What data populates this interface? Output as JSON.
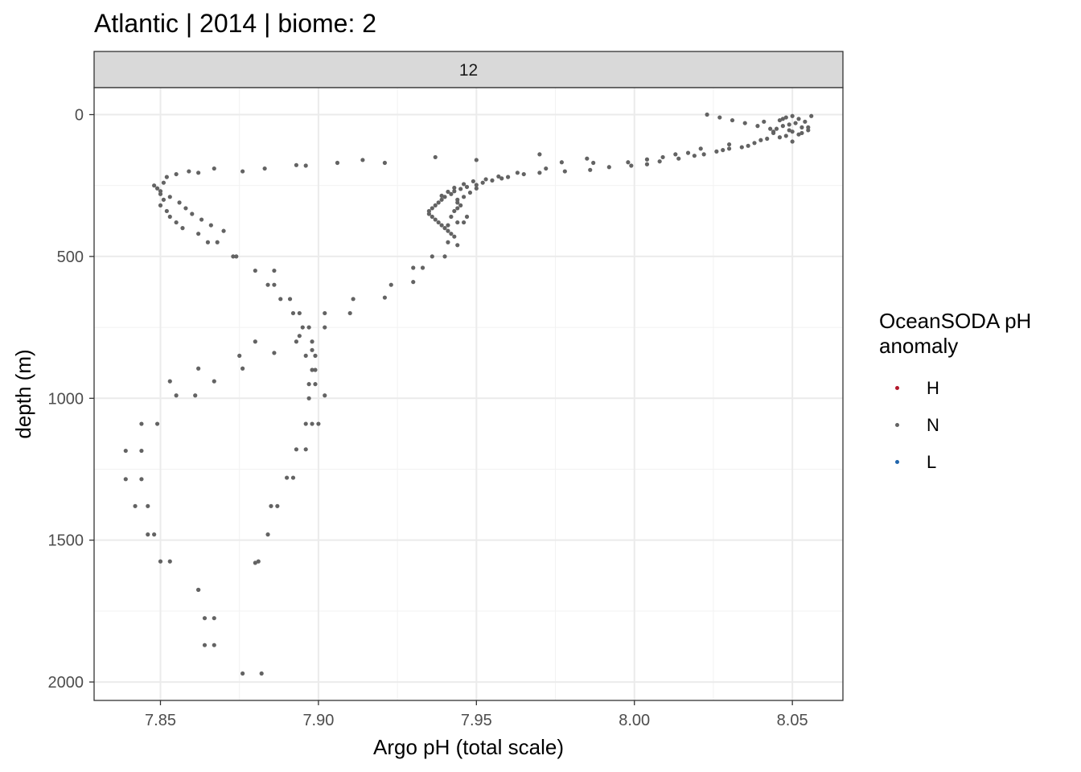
{
  "chart_data": {
    "type": "scatter",
    "title": "Atlantic | 2014 | biome: 2",
    "facet_label": "12",
    "xlabel": "Argo pH (total scale)",
    "ylabel": "depth (m)",
    "xlim": [
      7.829,
      8.066
    ],
    "ylim": [
      2065,
      -95
    ],
    "y_reversed": true,
    "x_ticks": [
      7.85,
      7.9,
      7.95,
      8.0,
      8.05
    ],
    "x_tick_labels": [
      "7.85",
      "7.90",
      "7.95",
      "8.00",
      "8.05"
    ],
    "y_ticks": [
      0,
      500,
      1000,
      1500,
      2000
    ],
    "y_tick_labels": [
      "0",
      "500",
      "1000",
      "1500",
      "2000"
    ],
    "grid": true,
    "legend": {
      "title": "OceanSODA pH anomaly",
      "position": "right",
      "entries": [
        {
          "label": "H",
          "color": "#B2182B"
        },
        {
          "label": "N",
          "color": "#636363"
        },
        {
          "label": "L",
          "color": "#2166AC"
        }
      ]
    },
    "series": [
      {
        "name": "N",
        "color": "#636363",
        "points": [
          [
            8.05,
            5
          ],
          [
            8.048,
            10
          ],
          [
            8.052,
            15
          ],
          [
            8.046,
            20
          ],
          [
            8.054,
            25
          ],
          [
            8.051,
            30
          ],
          [
            8.049,
            35
          ],
          [
            8.047,
            40
          ],
          [
            8.053,
            45
          ],
          [
            8.045,
            50
          ],
          [
            8.055,
            55
          ],
          [
            8.05,
            60
          ],
          [
            8.044,
            65
          ],
          [
            8.052,
            70
          ],
          [
            8.048,
            75
          ],
          [
            8.046,
            80
          ],
          [
            8.042,
            85
          ],
          [
            8.04,
            90
          ],
          [
            8.05,
            95
          ],
          [
            8.038,
            100
          ],
          [
            8.036,
            110
          ],
          [
            8.034,
            115
          ],
          [
            8.03,
            120
          ],
          [
            8.028,
            125
          ],
          [
            8.026,
            130
          ],
          [
            8.023,
            0
          ],
          [
            8.027,
            10
          ],
          [
            8.031,
            20
          ],
          [
            8.035,
            30
          ],
          [
            8.039,
            40
          ],
          [
            8.043,
            50
          ],
          [
            8.056,
            5
          ],
          [
            8.055,
            45
          ],
          [
            8.053,
            65
          ],
          [
            8.041,
            25
          ],
          [
            8.044,
            60
          ],
          [
            8.047,
            15
          ],
          [
            8.049,
            55
          ],
          [
            8.022,
            140
          ],
          [
            8.019,
            145
          ],
          [
            8.014,
            155
          ],
          [
            8.008,
            165
          ],
          [
            8.004,
            175
          ],
          [
            7.999,
            180
          ],
          [
            7.992,
            185
          ],
          [
            7.986,
            195
          ],
          [
            7.978,
            200
          ],
          [
            7.97,
            205
          ],
          [
            7.965,
            210
          ],
          [
            7.96,
            220
          ],
          [
            7.958,
            225
          ],
          [
            7.955,
            232
          ],
          [
            7.952,
            240
          ],
          [
            7.95,
            248
          ],
          [
            7.947,
            255
          ],
          [
            7.945,
            262
          ],
          [
            7.943,
            270
          ],
          [
            7.942,
            280
          ],
          [
            7.94,
            290
          ],
          [
            7.939,
            300
          ],
          [
            7.938,
            310
          ],
          [
            7.937,
            320
          ],
          [
            7.936,
            330
          ],
          [
            7.935,
            340
          ],
          [
            7.935,
            350
          ],
          [
            7.936,
            360
          ],
          [
            7.937,
            370
          ],
          [
            7.938,
            380
          ],
          [
            7.939,
            390
          ],
          [
            7.94,
            400
          ],
          [
            7.941,
            410
          ],
          [
            7.942,
            420
          ],
          [
            7.943,
            430
          ],
          [
            7.944,
            300
          ],
          [
            7.945,
            320
          ],
          [
            7.943,
            340
          ],
          [
            7.942,
            360
          ],
          [
            7.944,
            380
          ],
          [
            7.941,
            390
          ],
          [
            7.946,
            290
          ],
          [
            7.948,
            275
          ],
          [
            7.95,
            260
          ],
          [
            8.021,
            120
          ],
          [
            8.03,
            105
          ],
          [
            8.017,
            135
          ],
          [
            8.013,
            140
          ],
          [
            8.009,
            150
          ],
          [
            8.004,
            158
          ],
          [
            7.998,
            168
          ],
          [
            7.987,
            170
          ],
          [
            7.977,
            168
          ],
          [
            7.97,
            140
          ],
          [
            7.985,
            155
          ],
          [
            7.972,
            190
          ],
          [
            7.963,
            205
          ],
          [
            7.957,
            218
          ],
          [
            7.953,
            228
          ],
          [
            7.949,
            235
          ],
          [
            7.946,
            245
          ],
          [
            7.943,
            258
          ],
          [
            7.941,
            272
          ],
          [
            7.939,
            286
          ],
          [
            7.937,
            150
          ],
          [
            7.95,
            160
          ],
          [
            7.921,
            170
          ],
          [
            7.914,
            160
          ],
          [
            7.906,
            170
          ],
          [
            7.896,
            180
          ],
          [
            7.893,
            178
          ],
          [
            7.883,
            190
          ],
          [
            7.876,
            200
          ],
          [
            7.867,
            190
          ],
          [
            7.862,
            205
          ],
          [
            7.859,
            200
          ],
          [
            7.855,
            210
          ],
          [
            7.852,
            220
          ],
          [
            7.851,
            240
          ],
          [
            7.849,
            260
          ],
          [
            7.85,
            280
          ],
          [
            7.851,
            300
          ],
          [
            7.85,
            320
          ],
          [
            7.852,
            340
          ],
          [
            7.853,
            360
          ],
          [
            7.855,
            380
          ],
          [
            7.857,
            400
          ],
          [
            7.862,
            420
          ],
          [
            7.865,
            450
          ],
          [
            7.873,
            500
          ],
          [
            7.88,
            550
          ],
          [
            7.886,
            600
          ],
          [
            7.891,
            650
          ],
          [
            7.894,
            700
          ],
          [
            7.897,
            750
          ],
          [
            7.898,
            800
          ],
          [
            7.899,
            850
          ],
          [
            7.898,
            900
          ],
          [
            7.897,
            950
          ],
          [
            7.897,
            1000
          ],
          [
            7.898,
            1090
          ],
          [
            7.893,
            1180
          ],
          [
            7.89,
            1280
          ],
          [
            7.887,
            1380
          ],
          [
            7.884,
            1480
          ],
          [
            7.88,
            1580
          ],
          [
            7.876,
            1970
          ],
          [
            7.882,
            1970
          ],
          [
            7.848,
            250
          ],
          [
            7.85,
            270
          ],
          [
            7.853,
            290
          ],
          [
            7.856,
            310
          ],
          [
            7.858,
            330
          ],
          [
            7.86,
            350
          ],
          [
            7.863,
            370
          ],
          [
            7.866,
            390
          ],
          [
            7.87,
            410
          ],
          [
            7.868,
            450
          ],
          [
            7.874,
            500
          ],
          [
            7.886,
            550
          ],
          [
            7.884,
            600
          ],
          [
            7.888,
            650
          ],
          [
            7.892,
            700
          ],
          [
            7.895,
            750
          ],
          [
            7.893,
            800
          ],
          [
            7.896,
            850
          ],
          [
            7.899,
            900
          ],
          [
            7.899,
            950
          ],
          [
            7.902,
            990
          ],
          [
            7.9,
            1090
          ],
          [
            7.902,
            700
          ],
          [
            7.902,
            750
          ],
          [
            7.894,
            780
          ],
          [
            7.898,
            830
          ],
          [
            7.88,
            800
          ],
          [
            7.886,
            840
          ],
          [
            7.875,
            850
          ],
          [
            7.876,
            895
          ],
          [
            7.862,
            895
          ],
          [
            7.867,
            940
          ],
          [
            7.853,
            940
          ],
          [
            7.855,
            990
          ],
          [
            7.861,
            990
          ],
          [
            7.844,
            1090
          ],
          [
            7.849,
            1090
          ],
          [
            7.839,
            1185
          ],
          [
            7.844,
            1185
          ],
          [
            7.839,
            1285
          ],
          [
            7.844,
            1285
          ],
          [
            7.842,
            1380
          ],
          [
            7.846,
            1380
          ],
          [
            7.846,
            1480
          ],
          [
            7.848,
            1480
          ],
          [
            7.85,
            1575
          ],
          [
            7.853,
            1575
          ],
          [
            7.862,
            1675
          ],
          [
            7.862,
            1675
          ],
          [
            7.864,
            1775
          ],
          [
            7.867,
            1775
          ],
          [
            7.864,
            1870
          ],
          [
            7.867,
            1870
          ],
          [
            7.881,
            1575
          ],
          [
            7.885,
            1380
          ],
          [
            7.892,
            1280
          ],
          [
            7.896,
            1180
          ],
          [
            7.896,
            1090
          ],
          [
            7.93,
            540
          ],
          [
            7.933,
            540
          ],
          [
            7.93,
            590
          ],
          [
            7.923,
            600
          ],
          [
            7.921,
            645
          ],
          [
            7.911,
            650
          ],
          [
            7.91,
            700
          ],
          [
            7.936,
            500
          ],
          [
            7.94,
            500
          ],
          [
            7.941,
            450
          ],
          [
            7.944,
            460
          ],
          [
            7.947,
            360
          ],
          [
            7.946,
            380
          ],
          [
            7.944,
            330
          ],
          [
            7.944,
            310
          ]
        ]
      }
    ]
  }
}
